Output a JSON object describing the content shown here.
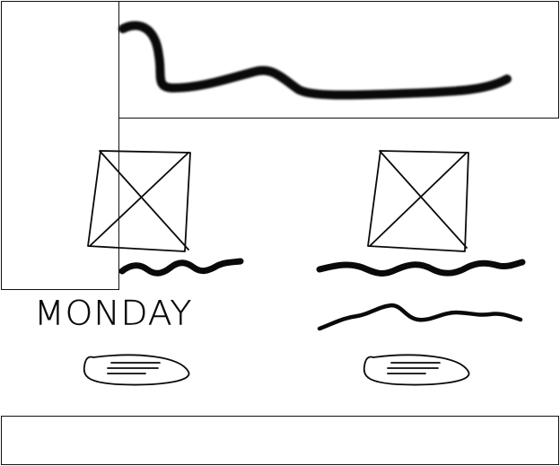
{
  "cards": [
    {
      "title": "MONDAY"
    }
  ]
}
